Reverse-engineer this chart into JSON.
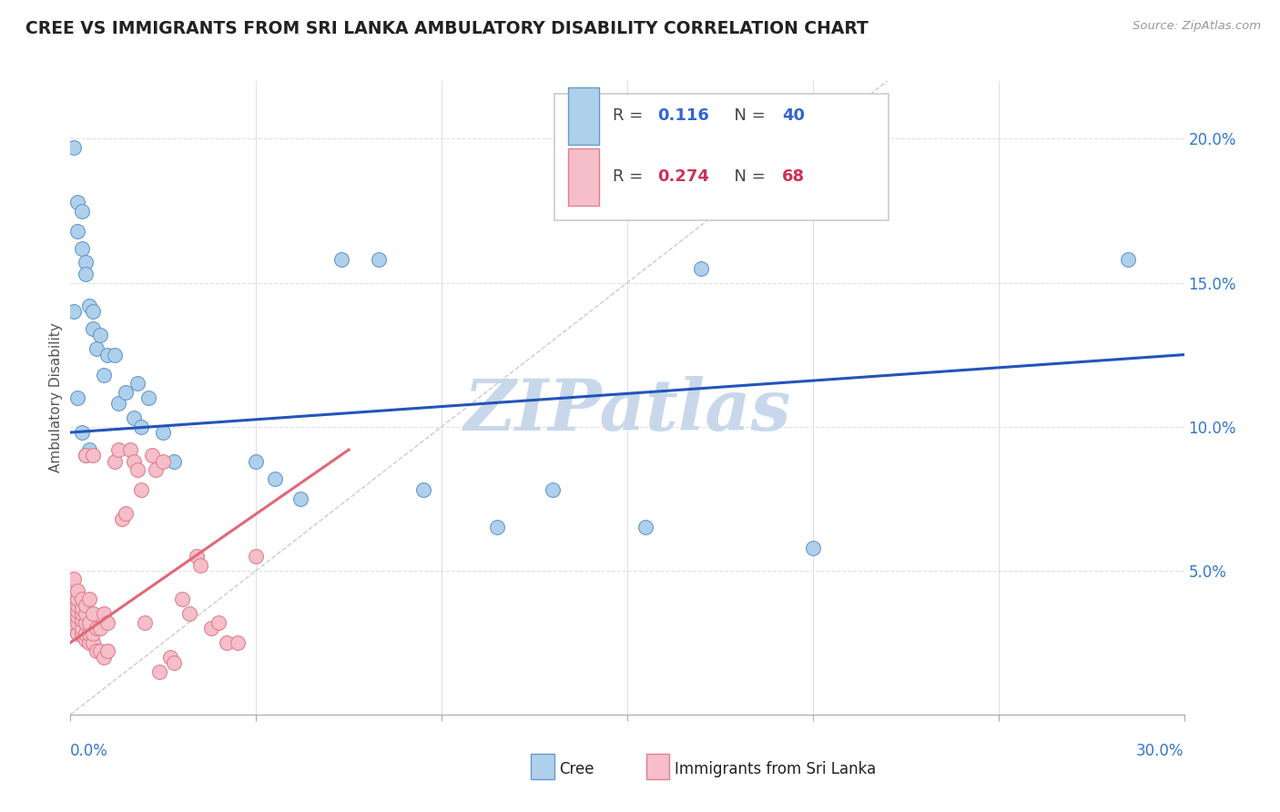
{
  "title": "CREE VS IMMIGRANTS FROM SRI LANKA AMBULATORY DISABILITY CORRELATION CHART",
  "source": "Source: ZipAtlas.com",
  "ylabel": "Ambulatory Disability",
  "xlim": [
    0.0,
    0.3
  ],
  "ylim": [
    0.0,
    0.22
  ],
  "yticks": [
    0.0,
    0.05,
    0.1,
    0.15,
    0.2
  ],
  "ytick_labels": [
    "",
    "5.0%",
    "10.0%",
    "15.0%",
    "20.0%"
  ],
  "cree_color": "#afd0eb",
  "cree_edge_color": "#6699cc",
  "sri_lanka_color": "#f5bec8",
  "sri_lanka_edge_color": "#e08090",
  "cree_trend_color": "#2255bb",
  "sri_lanka_trend_color": "#e06878",
  "ref_line_color": "#c0c0c0",
  "watermark_color": "#c8d8ea",
  "background_color": "#ffffff",
  "grid_color": "#e0e0e0",
  "cree_R": "0.116",
  "cree_N": "40",
  "sri_R": "0.274",
  "sri_N": "68",
  "cree_points_x": [
    0.001,
    0.002,
    0.002,
    0.003,
    0.003,
    0.004,
    0.004,
    0.005,
    0.006,
    0.006,
    0.007,
    0.008,
    0.009,
    0.01,
    0.012,
    0.013,
    0.015,
    0.017,
    0.018,
    0.019,
    0.021,
    0.025,
    0.028,
    0.05,
    0.055,
    0.062,
    0.073,
    0.083,
    0.095,
    0.115,
    0.13,
    0.155,
    0.17,
    0.2,
    0.285,
    0.001,
    0.002,
    0.003,
    0.004,
    0.005
  ],
  "cree_points_y": [
    0.197,
    0.178,
    0.168,
    0.162,
    0.175,
    0.157,
    0.153,
    0.142,
    0.14,
    0.134,
    0.127,
    0.132,
    0.118,
    0.125,
    0.125,
    0.108,
    0.112,
    0.103,
    0.115,
    0.1,
    0.11,
    0.098,
    0.088,
    0.088,
    0.082,
    0.075,
    0.158,
    0.158,
    0.078,
    0.065,
    0.078,
    0.065,
    0.155,
    0.058,
    0.158,
    0.14,
    0.11,
    0.098,
    0.09,
    0.092
  ],
  "sri_lanka_points_x": [
    0.0,
    0.0,
    0.0,
    0.001,
    0.001,
    0.001,
    0.001,
    0.001,
    0.001,
    0.002,
    0.002,
    0.002,
    0.002,
    0.002,
    0.002,
    0.002,
    0.003,
    0.003,
    0.003,
    0.003,
    0.003,
    0.003,
    0.004,
    0.004,
    0.004,
    0.004,
    0.004,
    0.004,
    0.005,
    0.005,
    0.005,
    0.005,
    0.006,
    0.006,
    0.006,
    0.006,
    0.007,
    0.007,
    0.008,
    0.008,
    0.009,
    0.009,
    0.01,
    0.01,
    0.012,
    0.013,
    0.014,
    0.015,
    0.016,
    0.017,
    0.018,
    0.019,
    0.02,
    0.022,
    0.023,
    0.024,
    0.025,
    0.027,
    0.028,
    0.03,
    0.032,
    0.034,
    0.035,
    0.038,
    0.04,
    0.042,
    0.045,
    0.05
  ],
  "sri_lanka_points_y": [
    0.03,
    0.038,
    0.042,
    0.032,
    0.035,
    0.038,
    0.04,
    0.043,
    0.047,
    0.028,
    0.032,
    0.034,
    0.036,
    0.038,
    0.04,
    0.043,
    0.028,
    0.03,
    0.033,
    0.035,
    0.037,
    0.04,
    0.026,
    0.028,
    0.032,
    0.035,
    0.038,
    0.09,
    0.025,
    0.028,
    0.032,
    0.04,
    0.025,
    0.028,
    0.035,
    0.09,
    0.022,
    0.03,
    0.022,
    0.03,
    0.02,
    0.035,
    0.022,
    0.032,
    0.088,
    0.092,
    0.068,
    0.07,
    0.092,
    0.088,
    0.085,
    0.078,
    0.032,
    0.09,
    0.085,
    0.015,
    0.088,
    0.02,
    0.018,
    0.04,
    0.035,
    0.055,
    0.052,
    0.03,
    0.032,
    0.025,
    0.025,
    0.055
  ]
}
